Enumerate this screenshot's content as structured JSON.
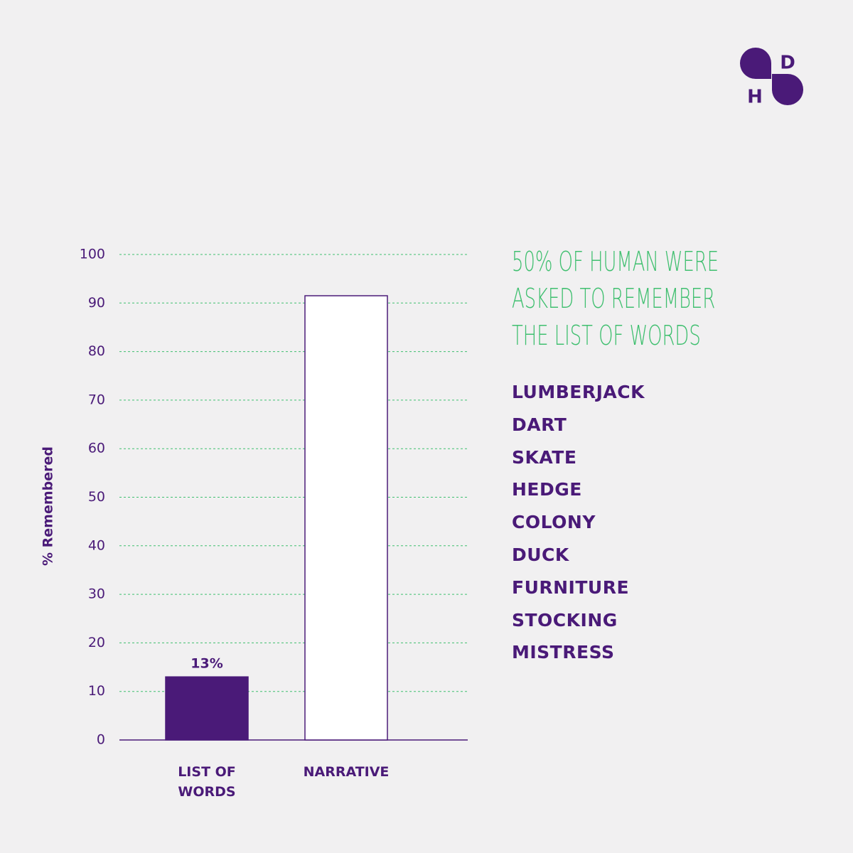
{
  "chart_data": {
    "type": "bar",
    "categories": [
      "LIST OF WORDS",
      "NARRATIVE"
    ],
    "values": [
      13,
      91.5
    ],
    "value_labels": [
      "13%",
      null
    ],
    "colors": [
      "#4a1a78",
      "#ffffff"
    ],
    "edge_color": "#4a1a78",
    "ylabel": "% Remembered",
    "ylim": [
      0,
      100
    ],
    "yticks": [
      0,
      10,
      20,
      30,
      40,
      50,
      60,
      70,
      80,
      90,
      100
    ],
    "grid": true
  },
  "annotation": {
    "lines": [
      "50% OF HUMAN WERE",
      "ASKED TO REMEMBER",
      "THE LIST OF WORDS"
    ]
  },
  "words": [
    "LUMBERJACK",
    "DART",
    "SKATE",
    "HEDGE",
    "COLONY",
    "DUCK",
    "FURNITURE",
    "STOCKING",
    "MISTRESS"
  ],
  "logo": {
    "letters": [
      "D",
      "H"
    ]
  }
}
